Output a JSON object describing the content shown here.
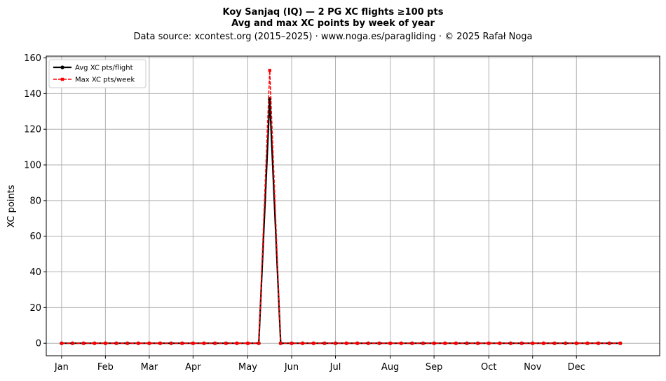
{
  "chart_data": {
    "type": "line",
    "title_line1": "Koy Sanjaq (IQ)  —  2 PG XC flights ≥100 pts",
    "title_line2": "Avg and max XC points by week of year",
    "subtitle": "Data source: xcontest.org (2015–2025)  ·  www.noga.es/paragliding  ·  © 2025 Rafał Noga",
    "xlabel": "",
    "ylabel": "XC points",
    "ylim": [
      -7,
      161
    ],
    "xlim": [
      -1.4,
      54.6
    ],
    "yticks": [
      0,
      20,
      40,
      60,
      80,
      100,
      120,
      140,
      160
    ],
    "month_ticks": [
      {
        "label": "Jan",
        "week": 0
      },
      {
        "label": "Feb",
        "week": 4
      },
      {
        "label": "Mar",
        "week": 8
      },
      {
        "label": "Apr",
        "week": 12
      },
      {
        "label": "May",
        "week": 17
      },
      {
        "label": "Jun",
        "week": 21
      },
      {
        "label": "Jul",
        "week": 25
      },
      {
        "label": "Aug",
        "week": 30
      },
      {
        "label": "Sep",
        "week": 34
      },
      {
        "label": "Oct",
        "week": 39
      },
      {
        "label": "Nov",
        "week": 43
      },
      {
        "label": "Dec",
        "week": 47
      }
    ],
    "x": [
      0,
      1,
      2,
      3,
      4,
      5,
      6,
      7,
      8,
      9,
      10,
      11,
      12,
      13,
      14,
      15,
      16,
      17,
      18,
      19,
      20,
      21,
      22,
      23,
      24,
      25,
      26,
      27,
      28,
      29,
      30,
      31,
      32,
      33,
      34,
      35,
      36,
      37,
      38,
      39,
      40,
      41,
      42,
      43,
      44,
      45,
      46,
      47,
      48,
      49,
      50,
      51
    ],
    "series": [
      {
        "name": "Avg XC pts/flight",
        "color": "#000000",
        "style": "solid",
        "marker": "circle",
        "values": [
          0,
          0,
          0,
          0,
          0,
          0,
          0,
          0,
          0,
          0,
          0,
          0,
          0,
          0,
          0,
          0,
          0,
          0,
          0,
          137,
          0,
          0,
          0,
          0,
          0,
          0,
          0,
          0,
          0,
          0,
          0,
          0,
          0,
          0,
          0,
          0,
          0,
          0,
          0,
          0,
          0,
          0,
          0,
          0,
          0,
          0,
          0,
          0,
          0,
          0,
          0,
          0
        ]
      },
      {
        "name": "Max XC pts/week",
        "color": "#ff0000",
        "style": "dashed",
        "marker": "square",
        "values": [
          0,
          0,
          0,
          0,
          0,
          0,
          0,
          0,
          0,
          0,
          0,
          0,
          0,
          0,
          0,
          0,
          0,
          0,
          0,
          153,
          0,
          0,
          0,
          0,
          0,
          0,
          0,
          0,
          0,
          0,
          0,
          0,
          0,
          0,
          0,
          0,
          0,
          0,
          0,
          0,
          0,
          0,
          0,
          0,
          0,
          0,
          0,
          0,
          0,
          0,
          0,
          0
        ]
      }
    ],
    "grid": true,
    "legend_position": "top-left"
  }
}
